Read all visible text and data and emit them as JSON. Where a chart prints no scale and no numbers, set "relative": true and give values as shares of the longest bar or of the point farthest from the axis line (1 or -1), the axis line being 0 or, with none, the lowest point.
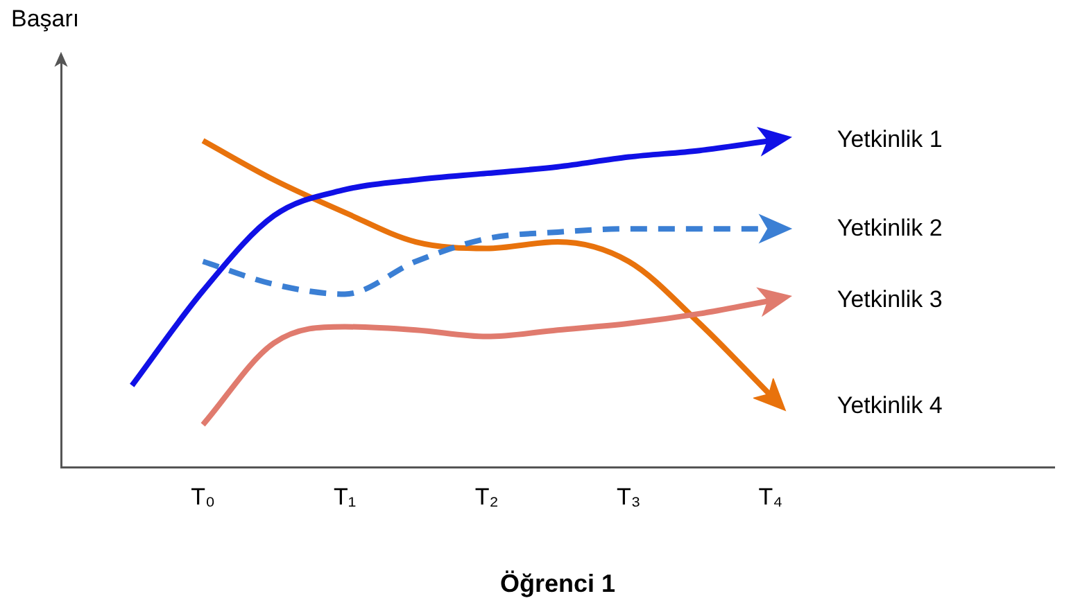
{
  "chart_data": {
    "type": "line",
    "xlabel": "Öğrenci 1",
    "ylabel": "Başarı",
    "relative": true,
    "grid": false,
    "legend": false,
    "tick_labels": "x",
    "marker": "none",
    "categories": [
      null,
      null,
      "T₀",
      null,
      "T₁",
      null,
      "T₂",
      null,
      "T₃",
      null,
      "T₄",
      null,
      null,
      null,
      null
    ],
    "series": [
      {
        "name": "Yetkinlik 1",
        "color": "#1010e6",
        "line_style": "solid",
        "values": [
          null,
          0.25,
          0.54,
          0.77,
          0.85,
          0.88,
          0.9,
          0.92,
          0.95,
          0.97,
          1.0,
          null,
          null,
          null,
          null
        ]
      },
      {
        "name": "Yetkinlik 2",
        "color": "#3b7fd4",
        "line_style": "dashed",
        "values": [
          null,
          null,
          0.63,
          0.56,
          0.53,
          0.63,
          0.7,
          0.72,
          0.73,
          0.73,
          0.73,
          null,
          null,
          null,
          null
        ]
      },
      {
        "name": "Yetkinlik 3",
        "color": "#e07b6e",
        "line_style": "solid",
        "values": [
          null,
          null,
          0.13,
          0.38,
          0.43,
          0.42,
          0.4,
          0.42,
          0.44,
          0.47,
          0.51,
          null,
          null,
          null,
          null
        ]
      },
      {
        "name": "Yetkinlik 4",
        "color": "#e8720c",
        "line_style": "solid",
        "values": [
          null,
          null,
          1.0,
          0.88,
          0.78,
          0.69,
          0.67,
          0.69,
          0.63,
          0.44,
          0.22,
          null,
          null,
          null,
          null
        ]
      }
    ]
  }
}
